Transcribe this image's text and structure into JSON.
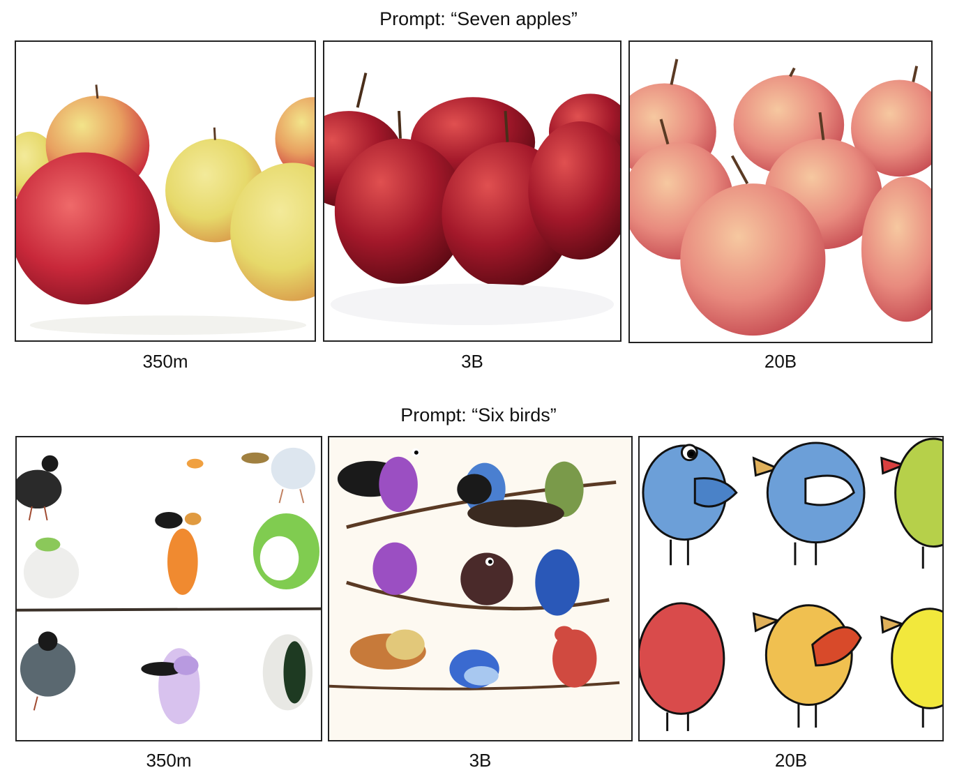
{
  "rows": [
    {
      "prompt": "Prompt: “Seven apples”",
      "panels": [
        {
          "label": "350m",
          "subject": "apples",
          "bg": "#ffffff"
        },
        {
          "label": "3B",
          "subject": "apples",
          "bg": "#ffffff"
        },
        {
          "label": "20B",
          "subject": "apples",
          "bg": "#ffffff"
        }
      ]
    },
    {
      "prompt": "Prompt: “Six birds”",
      "panels": [
        {
          "label": "350m",
          "subject": "birds",
          "bg": "#ffffff"
        },
        {
          "label": "3B",
          "subject": "birds",
          "bg": "#fdf9f1"
        },
        {
          "label": "20B",
          "subject": "birds",
          "bg": "#ffffff"
        }
      ]
    }
  ],
  "colors": {
    "apple_red": "#c8283a",
    "apple_yellow": "#e6d96a",
    "apple_pink": "#e88a7e",
    "branch": "#5a3a24",
    "bird_blue": "#6c9fd8",
    "bird_red": "#d94b4b",
    "bird_yellow": "#f2d43c",
    "bird_green": "#9bc44a",
    "bird_purple": "#9b4fc2"
  }
}
